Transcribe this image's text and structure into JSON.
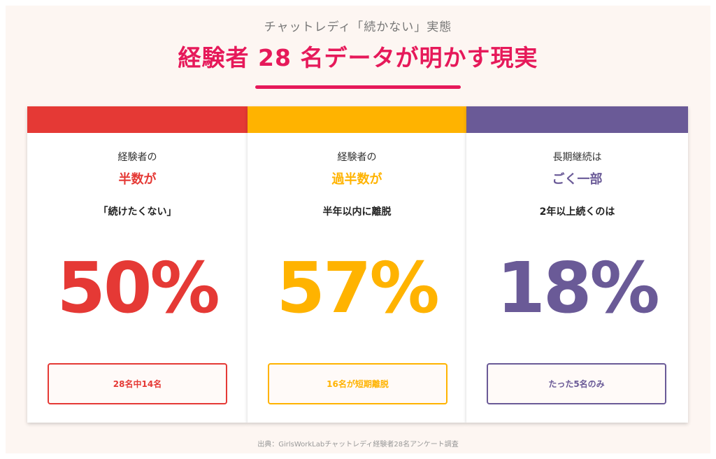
{
  "header": {
    "subtitle": "チャットレディ「続かない」実態",
    "title": "経験者 28 名データが明かす現実"
  },
  "panels": [
    {
      "lead": "経験者の",
      "highlight": "半数が",
      "desc": "「続けたくない」",
      "value": "50%",
      "note": "28名中14名",
      "color": "#e53935"
    },
    {
      "lead": "経験者の",
      "highlight": "過半数が",
      "desc": "半年以内に離脱",
      "value": "57%",
      "note": "16名が短期離脱",
      "color": "#ffb300"
    },
    {
      "lead": "長期継続は",
      "highlight": "ごく一部",
      "desc": "2年以上続くのは",
      "value": "18%",
      "note": "たった5名のみ",
      "color": "#6a5a97"
    }
  ],
  "footer": {
    "source": "出典：GirlsWorkLabチャットレディ経験者28名アンケート調査"
  }
}
